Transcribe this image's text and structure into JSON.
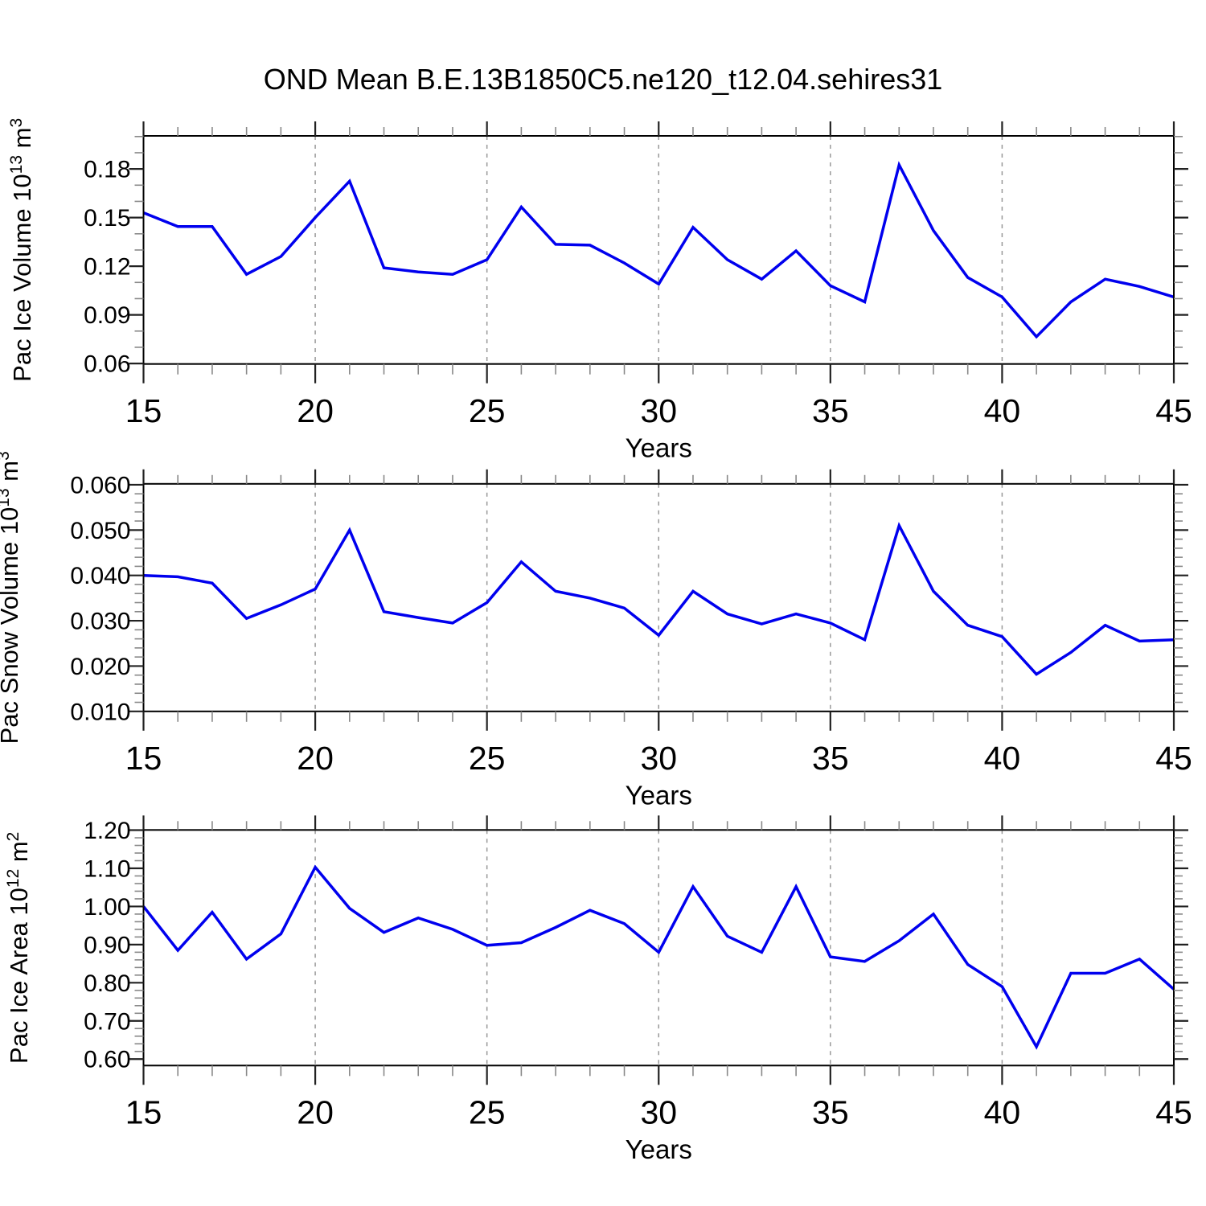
{
  "title": "OND Mean B.E.13B1850C5.ne120_t12.04.sehires31",
  "line_color": "#0000ee",
  "grid_color": "#999999",
  "axis_color": "#000000",
  "major_tick_color": "#222222",
  "minor_tick_color": "#888888",
  "chart_data": [
    {
      "type": "line",
      "name": "pac-ice-volume",
      "xlabel": "Years",
      "ylabel_parts": [
        {
          "t": "Pac Ice Volume 10"
        },
        {
          "t": "13",
          "sup": true
        },
        {
          "t": " m"
        },
        {
          "t": "3",
          "sup": true
        }
      ],
      "x": [
        15,
        16,
        17,
        18,
        19,
        20,
        21,
        22,
        23,
        24,
        25,
        26,
        27,
        28,
        29,
        30,
        31,
        32,
        33,
        34,
        35,
        36,
        37,
        38,
        39,
        40,
        41,
        42,
        43,
        44,
        45
      ],
      "values": [
        0.153,
        0.1445,
        0.1445,
        0.115,
        0.126,
        0.15,
        0.1725,
        0.119,
        0.1165,
        0.115,
        0.124,
        0.1565,
        0.1335,
        0.133,
        0.122,
        0.109,
        0.144,
        0.124,
        0.112,
        0.1295,
        0.108,
        0.098,
        0.1825,
        0.142,
        0.113,
        0.101,
        0.0765,
        0.098,
        0.112,
        0.1075,
        0.101
      ],
      "xlim": [
        15,
        45
      ],
      "ylim": [
        0.0597,
        0.2004
      ],
      "yticks": [
        {
          "v": 0.06,
          "label": "0.06"
        },
        {
          "v": 0.09,
          "label": "0.09"
        },
        {
          "v": 0.12,
          "label": "0.12"
        },
        {
          "v": 0.15,
          "label": "0.15"
        },
        {
          "v": 0.18,
          "label": "0.18"
        }
      ],
      "y_minor_step": 0.01,
      "xticks": [
        15,
        20,
        25,
        30,
        35,
        40,
        45
      ],
      "x_minor_step": 1,
      "grid_years": [
        20,
        25,
        30,
        35,
        40
      ],
      "grid": "vertical-dashed",
      "legend": "none"
    },
    {
      "type": "line",
      "name": "pac-snow-volume",
      "xlabel": "Years",
      "ylabel_parts": [
        {
          "t": "Pac Snow Volume 10"
        },
        {
          "t": "13",
          "sup": true
        },
        {
          "t": " m"
        },
        {
          "t": "3",
          "sup": true
        }
      ],
      "x": [
        15,
        16,
        17,
        18,
        19,
        20,
        21,
        22,
        23,
        24,
        25,
        26,
        27,
        28,
        29,
        30,
        31,
        32,
        33,
        34,
        35,
        36,
        37,
        38,
        39,
        40,
        41,
        42,
        43,
        44,
        45
      ],
      "values": [
        0.04,
        0.0397,
        0.0383,
        0.0305,
        0.0335,
        0.037,
        0.05,
        0.032,
        0.0307,
        0.0295,
        0.034,
        0.043,
        0.0365,
        0.035,
        0.0328,
        0.0268,
        0.0365,
        0.0315,
        0.0293,
        0.0315,
        0.0295,
        0.0258,
        0.051,
        0.0365,
        0.029,
        0.0265,
        0.0182,
        0.023,
        0.029,
        0.0255,
        0.0258
      ],
      "xlim": [
        15,
        45
      ],
      "ylim": [
        0.01,
        0.0602
      ],
      "yticks": [
        {
          "v": 0.01,
          "label": "0.010"
        },
        {
          "v": 0.02,
          "label": "0.020"
        },
        {
          "v": 0.03,
          "label": "0.030"
        },
        {
          "v": 0.04,
          "label": "0.040"
        },
        {
          "v": 0.05,
          "label": "0.050"
        },
        {
          "v": 0.06,
          "label": "0.060"
        }
      ],
      "y_minor_step": 0.002,
      "xticks": [
        15,
        20,
        25,
        30,
        35,
        40,
        45
      ],
      "x_minor_step": 1,
      "grid_years": [
        20,
        25,
        30,
        35,
        40
      ],
      "grid": "vertical-dashed",
      "legend": "none"
    },
    {
      "type": "line",
      "name": "pac-ice-area",
      "xlabel": "Years",
      "ylabel_parts": [
        {
          "t": "Pac Ice Area 10"
        },
        {
          "t": "12",
          "sup": true
        },
        {
          "t": " m"
        },
        {
          "t": "2",
          "sup": true
        }
      ],
      "x": [
        15,
        16,
        17,
        18,
        19,
        20,
        21,
        22,
        23,
        24,
        25,
        26,
        27,
        28,
        29,
        30,
        31,
        32,
        33,
        34,
        35,
        36,
        37,
        38,
        39,
        40,
        41,
        42,
        43,
        44,
        45
      ],
      "values": [
        1.0,
        0.885,
        0.985,
        0.862,
        0.928,
        1.103,
        0.995,
        0.932,
        0.97,
        0.94,
        0.898,
        0.905,
        0.945,
        0.99,
        0.955,
        0.88,
        1.052,
        0.922,
        0.88,
        1.052,
        0.868,
        0.856,
        0.91,
        0.98,
        0.848,
        0.79,
        0.632,
        0.825,
        0.825,
        0.862,
        0.783
      ],
      "xlim": [
        15,
        45
      ],
      "ylim": [
        0.583,
        1.2005
      ],
      "yticks": [
        {
          "v": 0.6,
          "label": "0.60"
        },
        {
          "v": 0.7,
          "label": "0.70"
        },
        {
          "v": 0.8,
          "label": "0.80"
        },
        {
          "v": 0.9,
          "label": "0.90"
        },
        {
          "v": 1.0,
          "label": "1.00"
        },
        {
          "v": 1.1,
          "label": "1.10"
        },
        {
          "v": 1.2,
          "label": "1.20"
        }
      ],
      "y_minor_step": 0.02,
      "xticks": [
        15,
        20,
        25,
        30,
        35,
        40,
        45
      ],
      "x_minor_step": 1,
      "grid_years": [
        20,
        25,
        30,
        35,
        40
      ],
      "grid": "vertical-dashed",
      "legend": "none"
    }
  ]
}
